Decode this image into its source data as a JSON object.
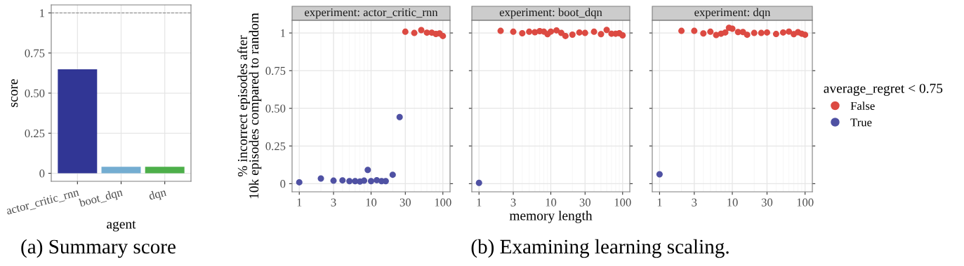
{
  "chart_data": [
    {
      "type": "bar",
      "categories": [
        "actor_critic_rnn",
        "boot_dqn",
        "dqn"
      ],
      "values": [
        0.648,
        0.041,
        0.041
      ],
      "colors": [
        "#313695",
        "#74add1",
        "#4daf4a"
      ],
      "xlabel": "agent",
      "ylabel": "score",
      "ylim": [
        -0.05,
        1.05
      ],
      "yticks": [
        0,
        0.25,
        {
          "value": 0.5,
          "label": "0.50"
        },
        0.75,
        1
      ],
      "ref_lines": [
        {
          "axis": "y",
          "value": 1,
          "color": "#808080",
          "line_style": "dashed"
        }
      ],
      "grid": true,
      "annotations": [
        "(a) Summary score"
      ]
    },
    {
      "type": "scatter",
      "title": "experiment: actor_critic_rnn",
      "ylabel": "% incorrect episodes after\n10k episodes compared to random",
      "log": "x",
      "xlim": [
        0.794,
        125.9
      ],
      "xticks": [
        1,
        3,
        10,
        30,
        100
      ],
      "ylim": [
        -0.054,
        1.084
      ],
      "yticks": [
        0,
        0.25,
        {
          "value": 0.5,
          "label": "0.50"
        },
        0.75,
        1
      ],
      "grid": true,
      "marker": "circle",
      "legend": false,
      "series": [
        {
          "color": "#dc4a42",
          "x": [
            30,
            40,
            50,
            60,
            70,
            80,
            90,
            100
          ],
          "values": [
            1.008,
            1.0,
            1.019,
            1.002,
            1.002,
            0.993,
            0.997,
            0.98
          ]
        },
        {
          "color": "#4f51a3",
          "x": [
            1,
            2,
            3,
            4,
            5,
            6,
            7,
            8,
            9,
            10,
            12,
            14,
            16,
            20,
            25
          ],
          "values": [
            0.009,
            0.034,
            0.02,
            0.022,
            0.017,
            0.017,
            0.014,
            0.02,
            0.091,
            0.017,
            0.023,
            0.017,
            0.017,
            0.059,
            0.442
          ]
        }
      ]
    },
    {
      "type": "scatter",
      "title": "experiment: boot_dqn",
      "xlabel": "memory length",
      "log": "x",
      "xlim": [
        0.794,
        125.9
      ],
      "xticks": [
        1,
        3,
        10,
        30,
        100
      ],
      "ylim": [
        -0.054,
        1.084
      ],
      "yticks": [
        0,
        0.25,
        0.5,
        0.75,
        1
      ],
      "tick_labels": "x",
      "grid": true,
      "marker": "circle",
      "legend": false,
      "annotations": [
        "(b) Examining learning scaling."
      ],
      "series": [
        {
          "color": "#dc4a42",
          "x": [
            2,
            3,
            4,
            5,
            6,
            7,
            8,
            9,
            10,
            12,
            14,
            16,
            20,
            25,
            30,
            40,
            50,
            60,
            70,
            80,
            90,
            100
          ],
          "values": [
            1.014,
            1.008,
            0.998,
            1.008,
            1.005,
            1.012,
            1.009,
            0.992,
            1.009,
            1.017,
            1.0,
            0.98,
            0.989,
            1.003,
            1.0,
            1.008,
            0.992,
            1.02,
            0.995,
            0.995,
            0.998,
            0.984
          ]
        },
        {
          "color": "#4f51a3",
          "x": [
            1
          ],
          "values": [
            0.005
          ]
        }
      ]
    },
    {
      "type": "scatter",
      "title": "experiment: dqn",
      "log": "x",
      "xlim": [
        0.794,
        125.9
      ],
      "xticks": [
        1,
        3,
        10,
        30,
        100
      ],
      "ylim": [
        -0.054,
        1.084
      ],
      "yticks": [
        0,
        0.25,
        0.5,
        0.75,
        1
      ],
      "tick_labels": "x",
      "grid": true,
      "marker": "circle",
      "legend": "right",
      "legend_title": "average_regret < 0.75",
      "series": [
        {
          "name": "False",
          "color": "#dc4a42",
          "x": [
            2,
            3,
            4,
            5,
            6,
            7,
            8,
            9,
            10,
            12,
            14,
            16,
            20,
            25,
            30,
            40,
            50,
            60,
            70,
            80,
            90,
            100
          ],
          "values": [
            1.014,
            1.014,
            0.997,
            1.008,
            0.986,
            0.995,
            1.003,
            1.034,
            1.028,
            1.006,
            1.006,
            0.988,
            1.0,
            1.0,
            1.003,
            0.993,
            1.003,
            1.009,
            0.992,
            1.005,
            0.995,
            0.988
          ]
        },
        {
          "name": "True",
          "color": "#4f51a3",
          "x": [
            1
          ],
          "values": [
            0.062
          ]
        }
      ]
    }
  ]
}
